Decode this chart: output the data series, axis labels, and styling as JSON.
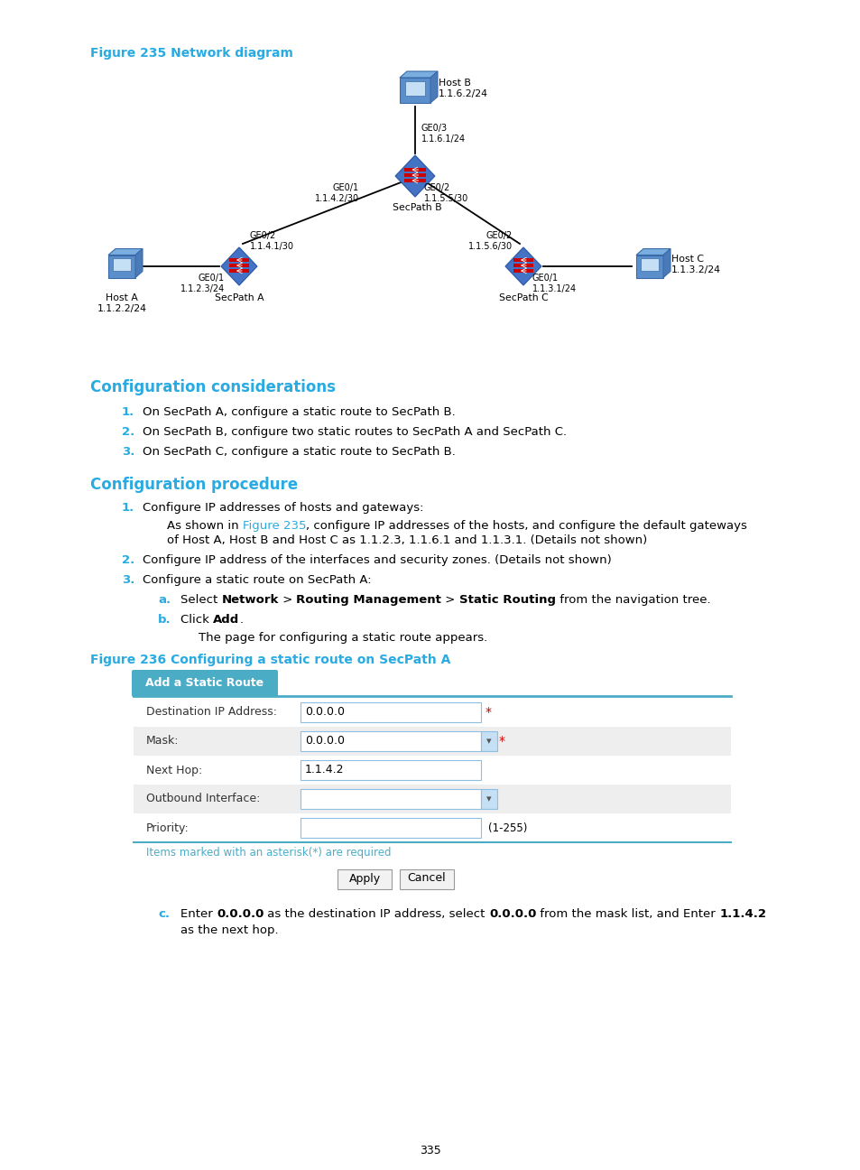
{
  "bg_color": "#ffffff",
  "fig_title": "Figure 235 Network diagram",
  "fig236_title": "Figure 236 Configuring a static route on SecPath A",
  "heading_color": "#29ABE2",
  "heading1": "Configuration considerations",
  "heading2": "Configuration procedure",
  "page_number": "335"
}
